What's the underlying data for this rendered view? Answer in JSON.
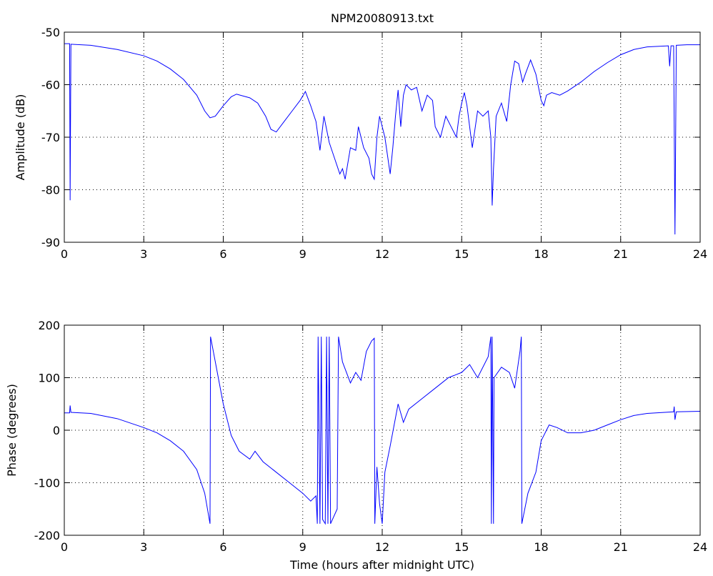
{
  "chart_data": [
    {
      "type": "line",
      "title": "NPM20080913.txt",
      "ylabel": "Amplitude (dB)",
      "grid": true,
      "xlim": [
        0,
        24
      ],
      "xticks": [
        0,
        3,
        6,
        9,
        12,
        15,
        18,
        21,
        24
      ],
      "ylim": [
        -90,
        -50
      ],
      "yticks": [
        -90,
        -80,
        -70,
        -60,
        -50
      ],
      "x": [
        0,
        0.2,
        0.22,
        0.25,
        1,
        2,
        3,
        3.5,
        4,
        4.5,
        5,
        5.3,
        5.5,
        5.7,
        6,
        6.3,
        6.5,
        7,
        7.3,
        7.6,
        7.8,
        8,
        8.3,
        8.6,
        8.9,
        9.1,
        9.3,
        9.5,
        9.65,
        9.8,
        10,
        10.2,
        10.4,
        10.5,
        10.6,
        10.8,
        11,
        11.1,
        11.3,
        11.5,
        11.6,
        11.7,
        11.8,
        11.9,
        12.1,
        12.3,
        12.4,
        12.5,
        12.6,
        12.7,
        12.8,
        12.9,
        13.1,
        13.3,
        13.5,
        13.7,
        13.9,
        14,
        14.2,
        14.4,
        14.6,
        14.8,
        14.9,
        15,
        15.1,
        15.2,
        15.3,
        15.4,
        15.6,
        15.8,
        16,
        16.1,
        16.15,
        16.2,
        16.3,
        16.5,
        16.7,
        16.85,
        17,
        17.15,
        17.3,
        17.4,
        17.6,
        17.8,
        18,
        18.1,
        18.2,
        18.4,
        18.7,
        19,
        19.5,
        20,
        20.5,
        21,
        21.5,
        22,
        22.8,
        22.85,
        22.9,
        23,
        23.05,
        23.1,
        23.5,
        24
      ],
      "series": [
        {
          "color": "#0000ff",
          "values": [
            -52.2,
            -52.2,
            -82,
            -52.3,
            -52.5,
            -53.3,
            -54.5,
            -55.5,
            -57,
            -59,
            -62,
            -65,
            -66.3,
            -66,
            -64,
            -62.3,
            -61.8,
            -62.5,
            -63.5,
            -66,
            -68.5,
            -69,
            -67,
            -65,
            -63,
            -61.3,
            -64,
            -67,
            -72.5,
            -66,
            -71,
            -74,
            -77,
            -76,
            -78,
            -72,
            -72.5,
            -68,
            -72,
            -74,
            -77,
            -78,
            -70,
            -66,
            -70,
            -77,
            -72,
            -66,
            -61,
            -68,
            -62,
            -60,
            -61,
            -60.5,
            -65,
            -62,
            -63,
            -68,
            -70,
            -66,
            -68,
            -70,
            -66,
            -63.5,
            -61.5,
            -64,
            -68,
            -72,
            -65,
            -66,
            -65,
            -70,
            -83,
            -76,
            -66,
            -63.5,
            -67,
            -60,
            -55.5,
            -56,
            -59.5,
            -58,
            -55.3,
            -58,
            -63,
            -64,
            -62,
            -61.5,
            -62,
            -61.2,
            -59.5,
            -57.5,
            -55.8,
            -54.3,
            -53.3,
            -52.8,
            -52.6,
            -56.5,
            -52.6,
            -52.6,
            -88.5,
            -52.5,
            -52.4,
            -52.4
          ]
        }
      ]
    },
    {
      "type": "line",
      "xlabel": "Time (hours after midnight UTC)",
      "ylabel": "Phase (degrees)",
      "grid": true,
      "xlim": [
        0,
        24
      ],
      "xticks": [
        0,
        3,
        6,
        9,
        12,
        15,
        18,
        21,
        24
      ],
      "ylim": [
        -200,
        200
      ],
      "yticks": [
        -200,
        -100,
        0,
        100,
        200
      ],
      "x": [
        0,
        0.2,
        0.22,
        0.25,
        1,
        2,
        3,
        3.5,
        4,
        4.5,
        5,
        5.3,
        5.5,
        5.52,
        5.7,
        6,
        6.3,
        6.6,
        7,
        7.2,
        7.5,
        8,
        8.5,
        9,
        9.3,
        9.5,
        9.55,
        9.58,
        9.65,
        9.7,
        9.75,
        9.85,
        9.9,
        9.95,
        10,
        10.05,
        10.3,
        10.35,
        10.5,
        10.8,
        11,
        11.2,
        11.4,
        11.6,
        11.7,
        11.72,
        11.8,
        11.9,
        12,
        12.1,
        12.3,
        12.6,
        12.8,
        13,
        13.5,
        14,
        14.5,
        15,
        15.3,
        15.6,
        16,
        16.1,
        16.12,
        16.15,
        16.2,
        16.22,
        16.5,
        16.8,
        17,
        17.2,
        17.25,
        17.27,
        17.5,
        17.8,
        18,
        18.3,
        18.6,
        19,
        19.5,
        20,
        20.5,
        21,
        21.5,
        22,
        23,
        23.02,
        23.05,
        23.1,
        24
      ],
      "series": [
        {
          "color": "#0000ff",
          "values": [
            33,
            33,
            47,
            34,
            32,
            22,
            5,
            -5,
            -20,
            -40,
            -75,
            -120,
            -178,
            178,
            130,
            50,
            -10,
            -40,
            -55,
            -40,
            -60,
            -80,
            -100,
            -120,
            -135,
            -125,
            -178,
            178,
            -178,
            178,
            -170,
            -178,
            178,
            -178,
            178,
            -178,
            -150,
            178,
            130,
            90,
            110,
            95,
            150,
            170,
            175,
            -178,
            -70,
            -140,
            -178,
            -80,
            -30,
            50,
            15,
            40,
            60,
            80,
            100,
            110,
            125,
            100,
            140,
            178,
            -178,
            178,
            -178,
            100,
            120,
            110,
            80,
            150,
            178,
            -178,
            -120,
            -80,
            -20,
            10,
            5,
            -5,
            -5,
            0,
            10,
            20,
            28,
            32,
            35,
            45,
            20,
            35,
            36
          ]
        }
      ]
    }
  ]
}
